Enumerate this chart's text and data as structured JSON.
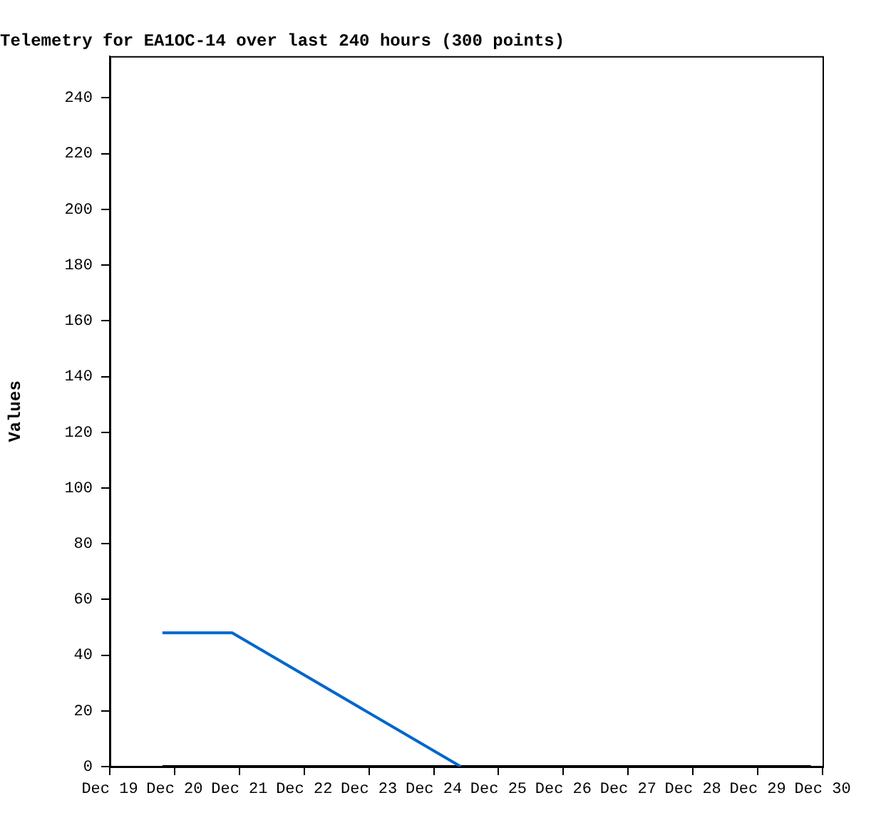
{
  "chart_data": {
    "type": "line",
    "title": "Telemetry for EA1OC-14 over last 240 hours (300 points)",
    "ylabel": "Values",
    "series": [
      {
        "color": "#0066cc",
        "x": [
          "--12-19T19:30",
          "--12-20T21:20",
          "--12-24T10:00"
        ],
        "values": [
          48,
          48,
          0
        ]
      },
      {
        "color": "#000000",
        "x": [
          "--12-19T19:30",
          "--12-29T19:40"
        ],
        "values": [
          0,
          0
        ]
      }
    ],
    "xlim": [
      "--12-19",
      "--12-30"
    ],
    "xticks": [
      {
        "value": "--12-19",
        "label": "Dec 19"
      },
      {
        "value": "--12-20",
        "label": "Dec 20"
      },
      {
        "value": "--12-21",
        "label": "Dec 21"
      },
      {
        "value": "--12-22",
        "label": "Dec 22"
      },
      {
        "value": "--12-23",
        "label": "Dec 23"
      },
      {
        "value": "--12-24",
        "label": "Dec 24"
      },
      {
        "value": "--12-25",
        "label": "Dec 25"
      },
      {
        "value": "--12-26",
        "label": "Dec 26"
      },
      {
        "value": "--12-27",
        "label": "Dec 27"
      },
      {
        "value": "--12-28",
        "label": "Dec 28"
      },
      {
        "value": "--12-29",
        "label": "Dec 29"
      },
      {
        "value": "--12-30",
        "label": "Dec 30"
      }
    ],
    "ylim": [
      0,
      255
    ],
    "yticks": [
      0,
      20,
      40,
      60,
      80,
      100,
      120,
      140,
      160,
      180,
      200,
      220,
      240
    ],
    "grid": false,
    "legend": false,
    "marker": "none",
    "line_style": "solid"
  }
}
